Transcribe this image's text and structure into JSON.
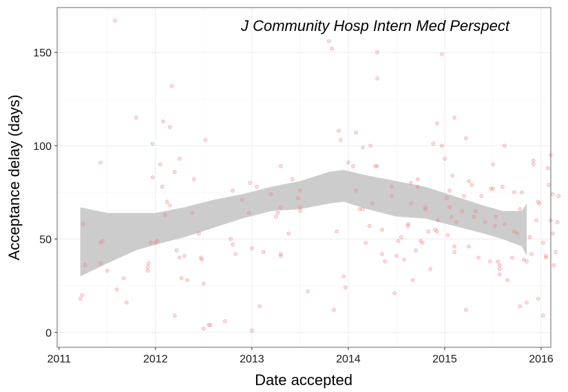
{
  "chart_data": {
    "type": "scatter",
    "title": "J Community Hosp Intern Med Perspect",
    "xlabel": "Date accepted",
    "ylabel": "Acceptance delay (days)",
    "x_ticks": [
      2011,
      2012,
      2013,
      2014,
      2015,
      2016
    ],
    "y_ticks": [
      0,
      50,
      100,
      150
    ],
    "xlim": [
      2010.98,
      2016.1
    ],
    "ylim": [
      -8,
      174
    ],
    "grid": true,
    "point_color": "#f08080",
    "band_color": "#cccccc",
    "points": [
      [
        2011.22,
        18
      ],
      [
        2011.24,
        20
      ],
      [
        2011.25,
        58
      ],
      [
        2011.27,
        36
      ],
      [
        2011.43,
        91
      ],
      [
        2011.43,
        48
      ],
      [
        2011.45,
        49
      ],
      [
        2011.43,
        37
      ],
      [
        2011.5,
        33
      ],
      [
        2011.58,
        167
      ],
      [
        2011.6,
        23
      ],
      [
        2011.67,
        29
      ],
      [
        2011.7,
        16
      ],
      [
        2011.8,
        115
      ],
      [
        2011.92,
        33
      ],
      [
        2011.93,
        37
      ],
      [
        2011.92,
        35
      ],
      [
        2011.95,
        48
      ],
      [
        2011.97,
        83
      ],
      [
        2011.97,
        101
      ],
      [
        2012.0,
        48
      ],
      [
        2012.02,
        49
      ],
      [
        2012.05,
        90
      ],
      [
        2012.07,
        78
      ],
      [
        2012.08,
        113
      ],
      [
        2012.1,
        63
      ],
      [
        2012.12,
        70
      ],
      [
        2012.15,
        110
      ],
      [
        2012.15,
        68
      ],
      [
        2012.17,
        132
      ],
      [
        2012.2,
        86
      ],
      [
        2012.2,
        9
      ],
      [
        2012.22,
        44
      ],
      [
        2012.25,
        93
      ],
      [
        2012.25,
        40
      ],
      [
        2012.27,
        29
      ],
      [
        2012.3,
        41
      ],
      [
        2012.33,
        28
      ],
      [
        2012.38,
        64
      ],
      [
        2012.4,
        82
      ],
      [
        2012.45,
        53
      ],
      [
        2012.47,
        40
      ],
      [
        2012.48,
        39
      ],
      [
        2012.5,
        26
      ],
      [
        2012.5,
        2
      ],
      [
        2012.52,
        103
      ],
      [
        2012.55,
        4
      ],
      [
        2012.57,
        4
      ],
      [
        2012.72,
        6
      ],
      [
        2012.78,
        50
      ],
      [
        2012.8,
        47
      ],
      [
        2012.8,
        76
      ],
      [
        2012.83,
        42
      ],
      [
        2012.9,
        71
      ],
      [
        2012.98,
        80
      ],
      [
        2012.97,
        64
      ],
      [
        2013.0,
        45
      ],
      [
        2013.0,
        1
      ],
      [
        2013.05,
        78
      ],
      [
        2013.08,
        14
      ],
      [
        2013.12,
        43
      ],
      [
        2013.2,
        74
      ],
      [
        2013.25,
        62
      ],
      [
        2013.27,
        64
      ],
      [
        2013.3,
        89
      ],
      [
        2013.3,
        67
      ],
      [
        2013.3,
        42
      ],
      [
        2013.3,
        41
      ],
      [
        2013.38,
        53
      ],
      [
        2013.42,
        82
      ],
      [
        2013.48,
        72
      ],
      [
        2013.5,
        76
      ],
      [
        2013.5,
        67
      ],
      [
        2013.5,
        65
      ],
      [
        2013.58,
        22
      ],
      [
        2013.8,
        156
      ],
      [
        2013.83,
        152
      ],
      [
        2013.85,
        12
      ],
      [
        2013.88,
        54
      ],
      [
        2013.9,
        108
      ],
      [
        2013.92,
        103
      ],
      [
        2013.95,
        30
      ],
      [
        2013.97,
        24
      ],
      [
        2014.0,
        91
      ],
      [
        2014.05,
        89
      ],
      [
        2014.08,
        107
      ],
      [
        2014.08,
        76
      ],
      [
        2014.12,
        66
      ],
      [
        2014.15,
        99
      ],
      [
        2014.15,
        66
      ],
      [
        2014.18,
        48
      ],
      [
        2014.22,
        57
      ],
      [
        2014.23,
        100
      ],
      [
        2014.25,
        69
      ],
      [
        2014.28,
        89
      ],
      [
        2014.3,
        89
      ],
      [
        2014.3,
        150
      ],
      [
        2014.3,
        136
      ],
      [
        2014.35,
        42
      ],
      [
        2014.35,
        55
      ],
      [
        2014.38,
        38
      ],
      [
        2014.45,
        73
      ],
      [
        2014.45,
        78
      ],
      [
        2014.48,
        21
      ],
      [
        2014.5,
        41
      ],
      [
        2014.52,
        49
      ],
      [
        2014.55,
        51
      ],
      [
        2014.58,
        39
      ],
      [
        2014.62,
        57
      ],
      [
        2014.62,
        58
      ],
      [
        2014.65,
        69
      ],
      [
        2014.65,
        80
      ],
      [
        2014.67,
        28
      ],
      [
        2014.7,
        44
      ],
      [
        2014.72,
        78
      ],
      [
        2014.72,
        82
      ],
      [
        2014.75,
        49
      ],
      [
        2014.77,
        48
      ],
      [
        2014.8,
        67
      ],
      [
        2014.8,
        66
      ],
      [
        2014.83,
        54
      ],
      [
        2014.85,
        34
      ],
      [
        2014.88,
        101
      ],
      [
        2014.9,
        55
      ],
      [
        2014.92,
        112
      ],
      [
        2014.92,
        54
      ],
      [
        2014.93,
        60
      ],
      [
        2014.97,
        100
      ],
      [
        2014.97,
        149
      ],
      [
        2015.0,
        93
      ],
      [
        2015.02,
        72
      ],
      [
        2015.03,
        52
      ],
      [
        2015.05,
        67
      ],
      [
        2015.05,
        76
      ],
      [
        2015.07,
        62
      ],
      [
        2015.08,
        84
      ],
      [
        2015.1,
        115
      ],
      [
        2015.1,
        43
      ],
      [
        2015.1,
        46
      ],
      [
        2015.12,
        59
      ],
      [
        2015.18,
        65
      ],
      [
        2015.2,
        73
      ],
      [
        2015.22,
        104
      ],
      [
        2015.22,
        12
      ],
      [
        2015.25,
        81
      ],
      [
        2015.25,
        46
      ],
      [
        2015.28,
        79
      ],
      [
        2015.3,
        62
      ],
      [
        2015.32,
        65
      ],
      [
        2015.35,
        40
      ],
      [
        2015.38,
        73
      ],
      [
        2015.42,
        59
      ],
      [
        2015.47,
        38
      ],
      [
        2015.48,
        77
      ],
      [
        2015.5,
        90
      ],
      [
        2015.5,
        77
      ],
      [
        2015.52,
        57
      ],
      [
        2015.53,
        62
      ],
      [
        2015.55,
        38
      ],
      [
        2015.57,
        34
      ],
      [
        2015.57,
        31
      ],
      [
        2015.57,
        36
      ],
      [
        2015.6,
        78
      ],
      [
        2015.62,
        100
      ],
      [
        2015.62,
        58
      ],
      [
        2015.65,
        28
      ],
      [
        2015.7,
        40
      ],
      [
        2015.72,
        75
      ],
      [
        2015.72,
        54
      ],
      [
        2015.75,
        53
      ],
      [
        2015.78,
        14
      ],
      [
        2015.78,
        66
      ],
      [
        2015.8,
        75
      ],
      [
        2015.82,
        39
      ],
      [
        2015.85,
        16
      ],
      [
        2015.85,
        38
      ],
      [
        2015.88,
        51
      ],
      [
        2015.9,
        42
      ],
      [
        2015.92,
        90
      ],
      [
        2015.92,
        92
      ],
      [
        2015.95,
        60
      ],
      [
        2015.97,
        18
      ],
      [
        2015.97,
        70
      ],
      [
        2015.98,
        69
      ],
      [
        2016.02,
        48
      ],
      [
        2016.02,
        9
      ],
      [
        2016.05,
        40
      ],
      [
        2016.07,
        88
      ],
      [
        2016.08,
        79
      ],
      [
        2016.1,
        60
      ],
      [
        2016.1,
        95
      ],
      [
        2016.12,
        53
      ],
      [
        2016.13,
        36
      ],
      [
        2016.15,
        43
      ],
      [
        2016.17,
        59
      ],
      [
        2016.18,
        73
      ],
      [
        2016.12,
        74
      ],
      [
        2016.05,
        41
      ]
    ],
    "smooth": {
      "x": [
        2011.22,
        2011.5,
        2011.8,
        2012.0,
        2012.3,
        2012.6,
        2012.9,
        2013.2,
        2013.5,
        2013.8,
        2013.95,
        2014.2,
        2014.5,
        2014.8,
        2015.1,
        2015.4,
        2015.6,
        2015.8,
        2015.85
      ],
      "lower": [
        30,
        37,
        44,
        47,
        51,
        56,
        61,
        65,
        66,
        69,
        70,
        66,
        62,
        61,
        57,
        53,
        50,
        46,
        41
      ],
      "upper": [
        67,
        64,
        64,
        64,
        67,
        71,
        74,
        78,
        81,
        86,
        87,
        84,
        81,
        78,
        73,
        68,
        65,
        65,
        69
      ]
    }
  }
}
